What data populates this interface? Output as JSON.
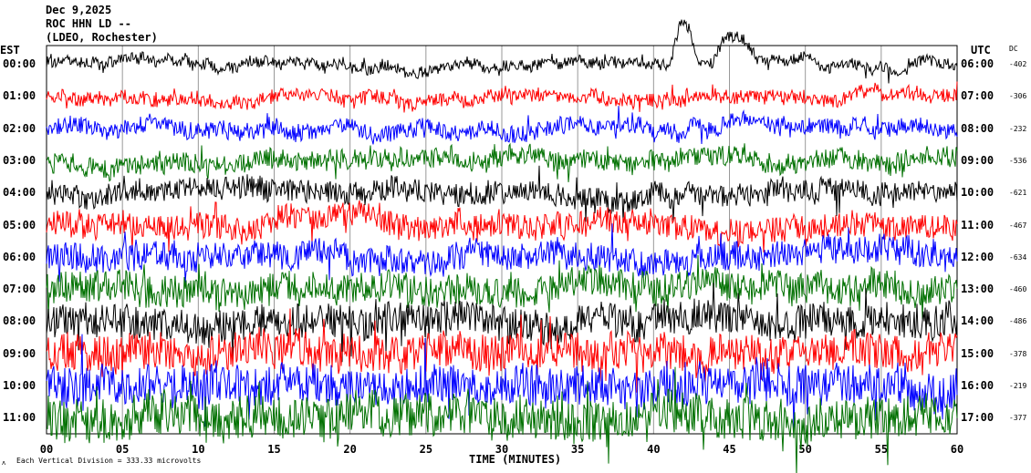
{
  "header": {
    "date": "Dec 9,2025",
    "station": "ROC HHN LD --",
    "network": "(LDEO, Rochester)"
  },
  "chart_data": {
    "type": "line",
    "title": "Dec 9,2025 ROC HHN LD --",
    "left_axis_label": "EST",
    "right_axis_label": "UTC",
    "dc_label": "DC",
    "xlabel": "TIME (MINUTES)",
    "xlim": [
      0,
      60
    ],
    "x_ticks": [
      "00",
      "05",
      "10",
      "15",
      "20",
      "25",
      "30",
      "35",
      "40",
      "45",
      "50",
      "55",
      "60"
    ],
    "grid": true,
    "scale_note": "Each Vertical Division =  333.33 microvolts",
    "rows": [
      {
        "est": "00:00",
        "utc": "06:00",
        "dc": "-402",
        "color": "#000000"
      },
      {
        "est": "01:00",
        "utc": "07:00",
        "dc": "-306",
        "color": "#ff0000"
      },
      {
        "est": "02:00",
        "utc": "08:00",
        "dc": "-232",
        "color": "#0000ff"
      },
      {
        "est": "03:00",
        "utc": "09:00",
        "dc": "-536",
        "color": "#007000"
      },
      {
        "est": "04:00",
        "utc": "10:00",
        "dc": "-621",
        "color": "#000000"
      },
      {
        "est": "05:00",
        "utc": "11:00",
        "dc": "-467",
        "color": "#ff0000"
      },
      {
        "est": "06:00",
        "utc": "12:00",
        "dc": "-634",
        "color": "#0000ff"
      },
      {
        "est": "07:00",
        "utc": "13:00",
        "dc": "-460",
        "color": "#007000"
      },
      {
        "est": "08:00",
        "utc": "14:00",
        "dc": "-486",
        "color": "#000000"
      },
      {
        "est": "09:00",
        "utc": "15:00",
        "dc": "-378",
        "color": "#ff0000"
      },
      {
        "est": "10:00",
        "utc": "16:00",
        "dc": "-219",
        "color": "#0000ff"
      },
      {
        "est": "11:00",
        "utc": "17:00",
        "dc": "-377",
        "color": "#007000"
      }
    ]
  }
}
